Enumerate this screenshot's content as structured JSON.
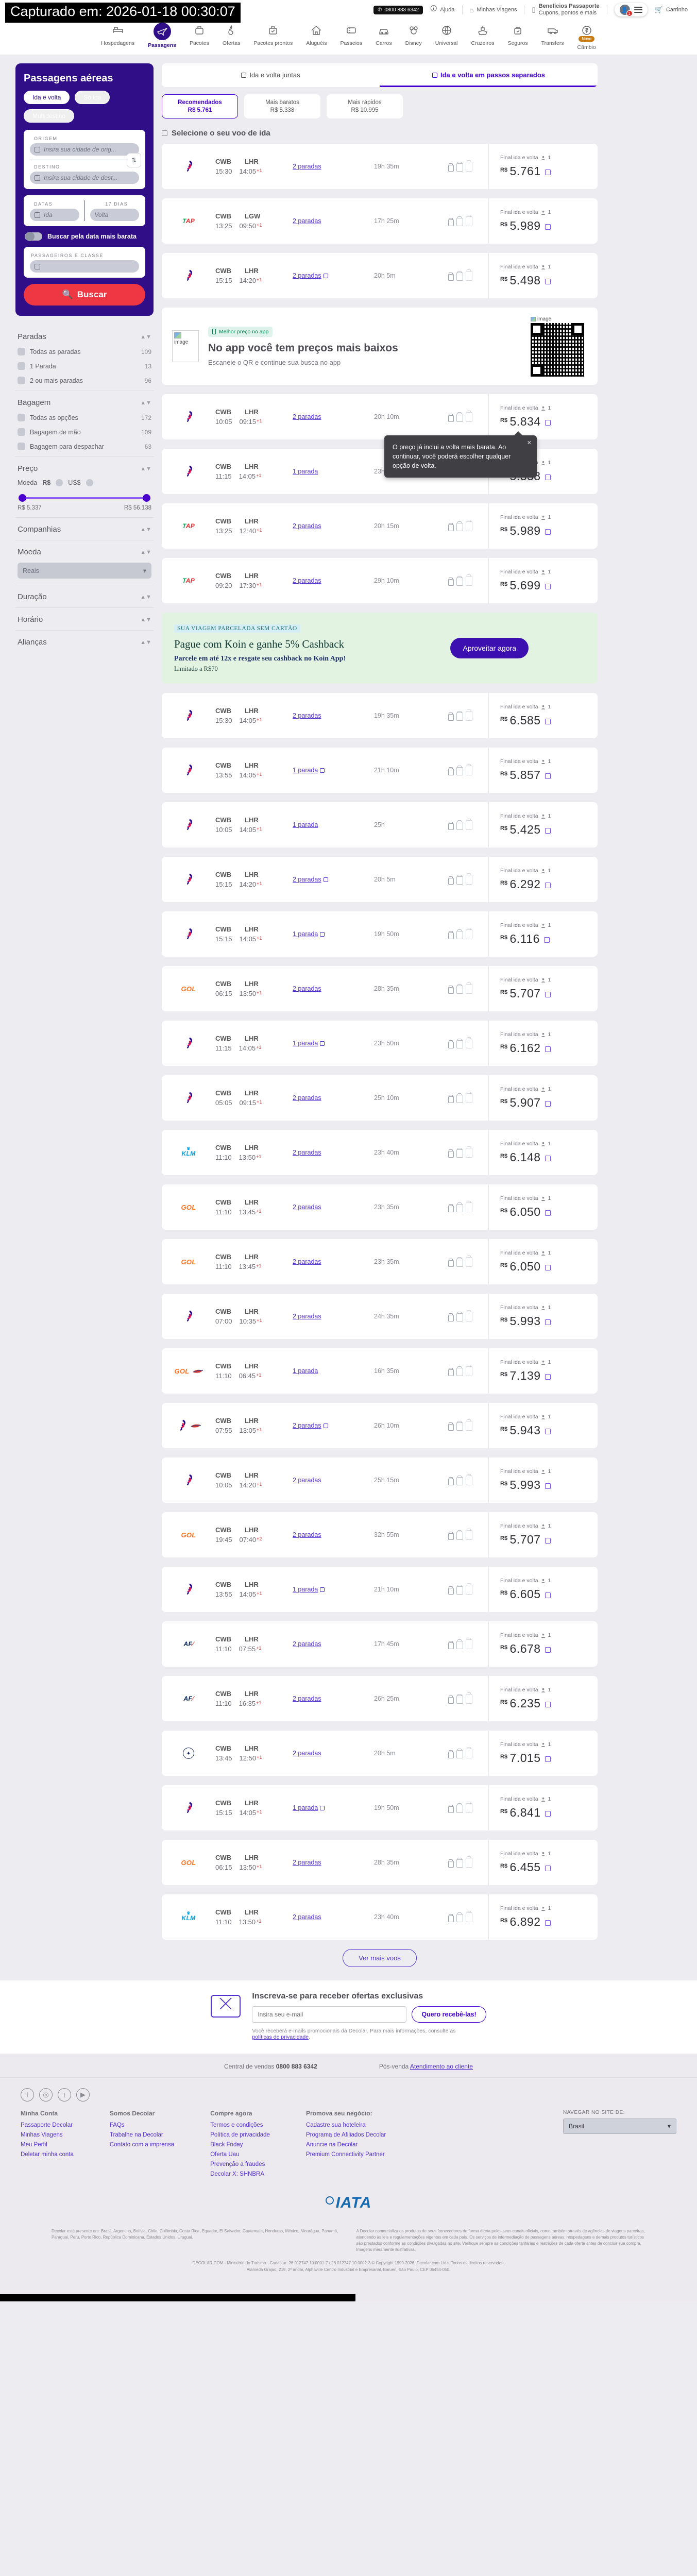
{
  "capture_banner": "Capturado em: 2026-01-18 00:30:07",
  "header": {
    "phone": "0800 883 6342",
    "help": "Ajuda",
    "my_trips": "Minhas Viagens",
    "benefits_title": "Benefícios Passaporte",
    "benefits_sub": "Cupons, pontos e mais",
    "account_badge": "1",
    "cart": "Carrinho"
  },
  "nav": {
    "items": [
      {
        "label": "Hospedagens",
        "icon": "bed",
        "active": false
      },
      {
        "label": "Passagens",
        "icon": "plane",
        "active": true
      },
      {
        "label": "Pacotes",
        "icon": "case",
        "active": false
      },
      {
        "label": "Ofertas",
        "icon": "flame",
        "active": false
      },
      {
        "label": "Pacotes prontos",
        "icon": "case-check",
        "active": false
      },
      {
        "label": "Aluguéis",
        "icon": "house",
        "active": false
      },
      {
        "label": "Passeios",
        "icon": "ticket",
        "active": false
      },
      {
        "label": "Carros",
        "icon": "car",
        "active": false
      },
      {
        "label": "Disney",
        "icon": "ears",
        "active": false
      },
      {
        "label": "Universal",
        "icon": "globe",
        "active": false
      },
      {
        "label": "Cruzeiros",
        "icon": "ship",
        "active": false
      },
      {
        "label": "Seguros",
        "icon": "bagcheck",
        "active": false
      },
      {
        "label": "Transfers",
        "icon": "van",
        "active": false
      },
      {
        "label": "Câmbio",
        "icon": "coin",
        "active": false,
        "badge": "Novo"
      }
    ]
  },
  "search": {
    "title": "Passagens aéreas",
    "trip_types": [
      "Ida e volta",
      "Só ida",
      "Multidestino"
    ],
    "selected_trip_type": "Ida e volta",
    "origin_label": "ORIGEM",
    "origin_placeholder": "Insira sua cidade de orig...",
    "destination_label": "DESTINO",
    "destination_placeholder": "Insira sua cidade de dest...",
    "dates_label": "DATAS",
    "dates_placeholder": "Ida",
    "days_label": "17 DIAS",
    "return_placeholder": "Volta",
    "cheap_toggle": "Buscar pela data mais barata",
    "pax_label": "PASSAGEIROS E CLASSE",
    "search_button": "Buscar"
  },
  "filters": {
    "sections": [
      {
        "title": "Paradas",
        "options": [
          {
            "label": "Todas as paradas",
            "count": "109"
          },
          {
            "label": "1 Parada",
            "count": "13"
          },
          {
            "label": "2 ou mais paradas",
            "count": "96"
          }
        ]
      },
      {
        "title": "Bagagem",
        "options": [
          {
            "label": "Todas as opções",
            "count": "172"
          },
          {
            "label": "Bagagem de mão",
            "count": "109"
          },
          {
            "label": "Bagagem para despachar",
            "count": "63"
          }
        ]
      },
      {
        "title": "Preço",
        "price": true,
        "currency_label": "Moeda",
        "currency_options": [
          "R$",
          "US$"
        ],
        "min": "R$ 5.337",
        "max": "R$ 56.138"
      },
      {
        "title": "Companhias"
      },
      {
        "title": "Moeda",
        "select": "Reais"
      },
      {
        "title": "Duração"
      },
      {
        "title": "Horário"
      },
      {
        "title": "Alianças"
      }
    ]
  },
  "results": {
    "tabs": [
      {
        "label": "Ida e volta juntas",
        "active": false
      },
      {
        "label": "Ida e volta em passos separados",
        "active": true
      }
    ],
    "sorts": [
      {
        "label": "Recomendados",
        "price": "R$ 5.761",
        "selected": true
      },
      {
        "label": "Mais baratos",
        "price": "R$ 5.338",
        "selected": false
      },
      {
        "label": "Mais rápidos",
        "price": "R$ 10.995",
        "selected": false
      }
    ],
    "section_title": "Selecione o seu voo de ida",
    "price_label": "Final ida e volta",
    "pax_count": "1",
    "currency": "R$",
    "tooltip": "O preço já inclui a volta mais barata. Ao continuar, você poderá escolher qualquer opção de volta.",
    "more_button": "Ver mais voos",
    "flights": [
      {
        "airline": "latam",
        "dep": "CWB",
        "dep_t": "15:30",
        "arr": "LHR",
        "arr_t": "14:05",
        "plus": "+1",
        "stops": "2 paradas",
        "info": false,
        "dur": "19h 35m",
        "price": "5.761"
      },
      {
        "airline": "tap",
        "dep": "CWB",
        "dep_t": "13:25",
        "arr": "LGW",
        "arr_t": "09:50",
        "plus": "+1",
        "stops": "2 paradas",
        "info": false,
        "dur": "17h 25m",
        "price": "5.989"
      },
      {
        "airline": "latam",
        "dep": "CWB",
        "dep_t": "15:15",
        "arr": "LHR",
        "arr_t": "14:20",
        "plus": "+1",
        "stops": "2 paradas",
        "info": true,
        "dur": "20h 5m",
        "price": "5.498",
        "after": "qr"
      },
      {
        "airline": "latam",
        "dep": "CWB",
        "dep_t": "10:05",
        "arr": "LHR",
        "arr_t": "09:15",
        "plus": "+1",
        "stops": "2 paradas",
        "info": false,
        "dur": "20h 10m",
        "price": "5.834",
        "tooltip": true
      },
      {
        "airline": "latam",
        "dep": "CWB",
        "dep_t": "11:15",
        "arr": "LHR",
        "arr_t": "14:05",
        "plus": "+1",
        "stops": "1 parada",
        "info": false,
        "dur": "23h 50m",
        "price": "5.338"
      },
      {
        "airline": "tap",
        "dep": "CWB",
        "dep_t": "13:25",
        "arr": "LHR",
        "arr_t": "12:40",
        "plus": "+1",
        "stops": "2 paradas",
        "info": false,
        "dur": "20h 15m",
        "price": "5.989"
      },
      {
        "airline": "tap",
        "dep": "CWB",
        "dep_t": "09:20",
        "arr": "LHR",
        "arr_t": "17:30",
        "plus": "+1",
        "stops": "2 paradas",
        "info": false,
        "dur": "29h 10m",
        "price": "5.699",
        "after": "koin"
      },
      {
        "airline": "latam",
        "dep": "CWB",
        "dep_t": "15:30",
        "arr": "LHR",
        "arr_t": "14:05",
        "plus": "+1",
        "stops": "2 paradas",
        "info": false,
        "dur": "19h 35m",
        "price": "6.585"
      },
      {
        "airline": "latam",
        "dep": "CWB",
        "dep_t": "13:55",
        "arr": "LHR",
        "arr_t": "14:05",
        "plus": "+1",
        "stops": "1 parada",
        "info": true,
        "dur": "21h 10m",
        "price": "5.857"
      },
      {
        "airline": "latam",
        "dep": "CWB",
        "dep_t": "10:05",
        "arr": "LHR",
        "arr_t": "14:05",
        "plus": "+1",
        "stops": "1 parada",
        "info": false,
        "dur": "25h",
        "price": "5.425"
      },
      {
        "airline": "latam",
        "dep": "CWB",
        "dep_t": "15:15",
        "arr": "LHR",
        "arr_t": "14:20",
        "plus": "+1",
        "stops": "2 paradas",
        "info": true,
        "dur": "20h 5m",
        "price": "6.292"
      },
      {
        "airline": "latam",
        "dep": "CWB",
        "dep_t": "15:15",
        "arr": "LHR",
        "arr_t": "14:05",
        "plus": "+1",
        "stops": "1 parada",
        "info": true,
        "dur": "19h 50m",
        "price": "6.116"
      },
      {
        "airline": "gol",
        "dep": "CWB",
        "dep_t": "06:15",
        "arr": "LHR",
        "arr_t": "13:50",
        "plus": "+1",
        "stops": "2 paradas",
        "info": false,
        "dur": "28h 35m",
        "price": "5.707"
      },
      {
        "airline": "latam",
        "dep": "CWB",
        "dep_t": "11:15",
        "arr": "LHR",
        "arr_t": "14:05",
        "plus": "+1",
        "stops": "1 parada",
        "info": true,
        "dur": "23h 50m",
        "price": "6.162"
      },
      {
        "airline": "latam",
        "dep": "CWB",
        "dep_t": "05:05",
        "arr": "LHR",
        "arr_t": "09:15",
        "plus": "+1",
        "stops": "2 paradas",
        "info": false,
        "dur": "25h 10m",
        "price": "5.907"
      },
      {
        "airline": "klm",
        "dep": "CWB",
        "dep_t": "11:10",
        "arr": "LHR",
        "arr_t": "13:50",
        "plus": "+1",
        "stops": "2 paradas",
        "info": false,
        "dur": "23h 40m",
        "price": "6.148"
      },
      {
        "airline": "gol",
        "dep": "CWB",
        "dep_t": "11:10",
        "arr": "LHR",
        "arr_t": "13:45",
        "plus": "+1",
        "stops": "2 paradas",
        "info": false,
        "dur": "23h 35m",
        "price": "6.050"
      },
      {
        "airline": "gol",
        "dep": "CWB",
        "dep_t": "11:10",
        "arr": "LHR",
        "arr_t": "13:45",
        "plus": "+1",
        "stops": "2 paradas",
        "info": false,
        "dur": "23h 35m",
        "price": "6.050"
      },
      {
        "airline": "latam",
        "dep": "CWB",
        "dep_t": "07:00",
        "arr": "LHR",
        "arr_t": "10:35",
        "plus": "+1",
        "stops": "2 paradas",
        "info": false,
        "dur": "24h 35m",
        "price": "5.993"
      },
      {
        "airline": "gol",
        "airline2": "ba",
        "dep": "CWB",
        "dep_t": "11:10",
        "arr": "LHR",
        "arr_t": "06:45",
        "plus": "+1",
        "stops": "1 parada",
        "info": false,
        "dur": "16h 35m",
        "price": "7.139"
      },
      {
        "airline": "latam",
        "airline2": "ba",
        "dep": "CWB",
        "dep_t": "07:55",
        "arr": "LHR",
        "arr_t": "13:05",
        "plus": "+1",
        "stops": "2 paradas",
        "info": true,
        "dur": "26h 10m",
        "price": "5.943"
      },
      {
        "airline": "latam",
        "dep": "CWB",
        "dep_t": "10:05",
        "arr": "LHR",
        "arr_t": "14:20",
        "plus": "+1",
        "stops": "2 paradas",
        "info": false,
        "dur": "25h 15m",
        "price": "5.993"
      },
      {
        "airline": "gol",
        "dep": "CWB",
        "dep_t": "19:45",
        "arr": "LHR",
        "arr_t": "07:40",
        "plus": "+2",
        "stops": "2 paradas",
        "info": false,
        "dur": "32h 55m",
        "price": "5.707"
      },
      {
        "airline": "latam",
        "dep": "CWB",
        "dep_t": "13:55",
        "arr": "LHR",
        "arr_t": "14:05",
        "plus": "+1",
        "stops": "1 parada",
        "info": true,
        "dur": "21h 10m",
        "price": "6.605"
      },
      {
        "airline": "af",
        "dep": "CWB",
        "dep_t": "11:10",
        "arr": "LHR",
        "arr_t": "07:55",
        "plus": "+1",
        "stops": "2 paradas",
        "info": false,
        "dur": "17h 45m",
        "price": "6.678"
      },
      {
        "airline": "af",
        "dep": "CWB",
        "dep_t": "11:10",
        "arr": "LHR",
        "arr_t": "16:35",
        "plus": "+1",
        "stops": "2 paradas",
        "info": false,
        "dur": "26h 25m",
        "price": "6.235"
      },
      {
        "airline": "lh",
        "dep": "CWB",
        "dep_t": "13:45",
        "arr": "LHR",
        "arr_t": "12:50",
        "plus": "+1",
        "stops": "2 paradas",
        "info": false,
        "dur": "20h 5m",
        "price": "7.015"
      },
      {
        "airline": "latam",
        "dep": "CWB",
        "dep_t": "15:15",
        "arr": "LHR",
        "arr_t": "14:05",
        "plus": "+1",
        "stops": "1 parada",
        "info": true,
        "dur": "19h 50m",
        "price": "6.841"
      },
      {
        "airline": "gol",
        "dep": "CWB",
        "dep_t": "06:15",
        "arr": "LHR",
        "arr_t": "13:50",
        "plus": "+1",
        "stops": "2 paradas",
        "info": false,
        "dur": "28h 35m",
        "price": "6.455"
      },
      {
        "airline": "klm",
        "dep": "CWB",
        "dep_t": "11:10",
        "arr": "LHR",
        "arr_t": "13:50",
        "plus": "+1",
        "stops": "2 paradas",
        "info": false,
        "dur": "23h 40m",
        "price": "6.892"
      }
    ]
  },
  "qr_banner": {
    "badge": "Melhor preço no app",
    "title": "No app você tem preços mais baixos",
    "subtitle": "Escaneie o QR e continue sua busca no app",
    "image_alt": "image"
  },
  "koin_banner": {
    "kicker": "SUA VIAGEM PARCELADA SEM CARTÃO",
    "title": "Pague com Koin e ganhe 5% Cashback",
    "subtitle": "Parcele em até 12x e resgate seu cashback no Koin App!",
    "note": "Limitado a R$70",
    "button": "Aproveitar agora"
  },
  "newsletter": {
    "title": "Inscreva-se para receber ofertas exclusivas",
    "placeholder": "Insira seu e-mail",
    "button": "Quero recebê-las!",
    "note_prefix": "Você receberá e-mails promocionais da Decolar. Para mais informações, consulte as ",
    "note_link": "políticas de privacidade",
    "note_suffix": "."
  },
  "footer": {
    "sales_label": "Central de vendas",
    "sales_phone": "0800 883 6342",
    "aftersales_label": "Pós-venda",
    "aftersales_link": "Atendimento ao cliente",
    "social": [
      "facebook",
      "instagram",
      "twitter",
      "youtube"
    ],
    "columns": [
      {
        "title": "Minha Conta",
        "links": [
          "Passaporte Decolar",
          "Minhas Viagens",
          "Meu Perfil",
          "Deletar minha conta"
        ]
      },
      {
        "title": "Somos Decolar",
        "links": [
          "FAQs",
          "Trabalhe na Decolar",
          "Contato com a imprensa"
        ]
      },
      {
        "title": "Compre agora",
        "links": [
          "Termos e condições",
          "Política de privacidade",
          "Black Friday",
          "Oferta Uau",
          "Prevenção a fraudes",
          "Decolar X: SHNBRA"
        ]
      },
      {
        "title": "Promova seu negócio:",
        "links": [
          "Cadastre sua hoteleira",
          "Programa de Afiliados Decolar",
          "Anuncie na Decolar",
          "Premium Connectivity Partner"
        ]
      }
    ],
    "region_label": "NAVEGAR NO SITE DE:",
    "region_value": "Brasil",
    "iata": "IATA",
    "legal_left": "Decolar está presente em: Brasil, Argentina, Bolívia, Chile, Colômbia, Costa Rica, Equador, El Salvador, Guatemala, Honduras, México, Nicarágua, Panamá, Paraguai, Peru, Porto Rico, República Dominicana, Estados Unidos, Uruguai.",
    "legal_right": "A Decolar comercializa os produtos de seus fornecedores de forma direta pelos seus canais oficiais, como também através de agências de viagens parceiras, atendendo às leis e regulamentações vigentes em cada país. Os serviços de intermediação de passagens aéreas, hospedagens e demais produtos turísticos são prestados conforme as condições divulgadas no site. Verifique sempre as condições tarifárias e restrições de cada oferta antes de concluir sua compra. Imagens meramente ilustrativas.",
    "copyright": "DECOLAR.COM - Ministério do Turismo - Cadastur: 26.012747.10.0001-7 / 26.012747.10.0002-3 © Copyright 1999-2026. Decolar.com Ltda. Todos os direitos reservados.",
    "address": "Alameda Grajaú, 219, 2º andar, Alphaville Centro Industrial e Empresarial, Barueri, São Paulo, CEP 06454-050."
  }
}
